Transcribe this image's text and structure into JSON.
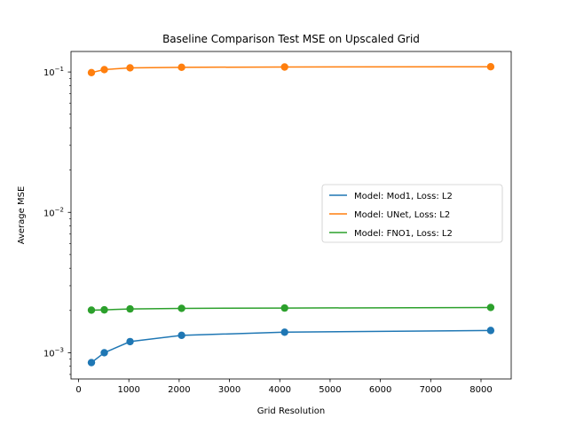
{
  "chart_data": {
    "type": "line",
    "title": "Baseline Comparison Test MSE on Upscaled Grid",
    "xlabel": "Grid Resolution",
    "ylabel": "Average MSE",
    "xlim": [
      -150,
      8600
    ],
    "ylim": [
      0.00065,
      0.14
    ],
    "yscale": "log",
    "xticks": [
      0,
      1000,
      2000,
      3000,
      4000,
      5000,
      6000,
      7000,
      8000
    ],
    "xtick_labels": [
      "0",
      "1000",
      "2000",
      "3000",
      "4000",
      "5000",
      "6000",
      "7000",
      "8000"
    ],
    "yticks_major": [
      0.001,
      0.01,
      0.1
    ],
    "ytick_labels": [
      {
        "base": "10",
        "exp": "−3"
      },
      {
        "base": "10",
        "exp": "−2"
      },
      {
        "base": "10",
        "exp": "−1"
      }
    ],
    "grid": false,
    "legend_position": "center-right",
    "x": [
      256,
      512,
      1024,
      2048,
      4096,
      8192
    ],
    "series": [
      {
        "name": "Model: Mod1, Loss: L2",
        "color": "#1f77b4",
        "values": [
          0.00085,
          0.001,
          0.0012,
          0.00133,
          0.0014,
          0.00144
        ]
      },
      {
        "name": "Model: UNet, Loss: L2",
        "color": "#ff7f0e",
        "values": [
          0.099,
          0.104,
          0.107,
          0.108,
          0.1085,
          0.109
        ]
      },
      {
        "name": "Model: FNO1, Loss: L2",
        "color": "#2ca02c",
        "values": [
          0.00201,
          0.00202,
          0.00205,
          0.00207,
          0.00208,
          0.0021
        ]
      }
    ]
  }
}
